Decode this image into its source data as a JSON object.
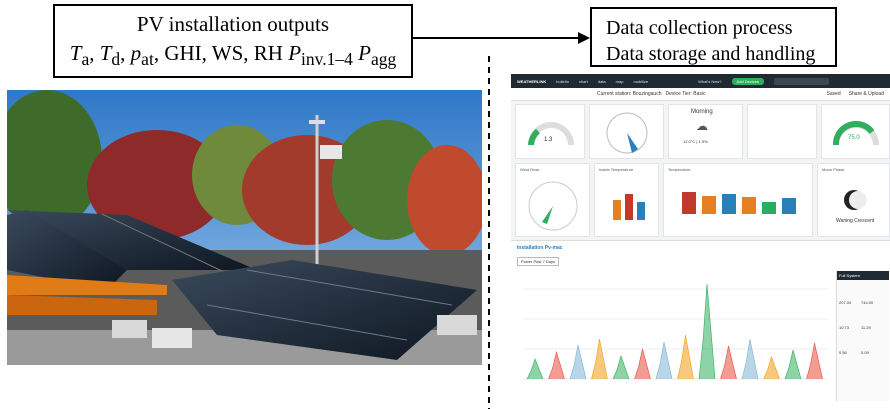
{
  "diagram": {
    "left_box": {
      "line1": "PV installation outputs",
      "line2_parts": [
        {
          "base": "T",
          "sub": "a",
          "sep": ", "
        },
        {
          "base": "T",
          "sub": "d",
          "sep": ", "
        },
        {
          "base": "p",
          "sub": "at",
          "sep": ", "
        },
        {
          "plain": "GHI, WS, RH"
        },
        {
          "base": "P",
          "sub": "inv.1–4",
          "sep": "  "
        },
        {
          "base": "P",
          "sub": "agg",
          "sep": ""
        }
      ]
    },
    "right_box": {
      "line1": "Data collection process",
      "line2": "Data storage and handling"
    }
  },
  "dashboard": {
    "brand": "WEATHERLINK",
    "nav": [
      "bulletin",
      "chart",
      "data",
      "map",
      "mobilize"
    ],
    "whats_new": "What's New?",
    "cta": "Add Devices",
    "station_label": "Current station: Bouzingauch",
    "device_tier": "Device Tier: Basic",
    "actions": [
      "Saved",
      "Share & Upload"
    ],
    "widgets": {
      "gauge_left_value": "1.3",
      "morning_title": "Morning",
      "morning_temp": "12.0°C | 1.9%",
      "gauge_right_value": "75.0",
      "wind_rose": "Wind Rose",
      "inside_temp": "Inside Temperature",
      "temperature": "Temperature",
      "moon_phase": "Moon Phase",
      "moon_state": "Waning Crescent"
    },
    "bar_colors": [
      "#c0392b",
      "#e67e22",
      "#2980b9",
      "#e67e22",
      "#27ae60",
      "#2980b9"
    ],
    "panel_title": "Installation Pv-mac",
    "panel_filter": "Power Past 7 Days",
    "side_title": "Full System",
    "side_values": [
      "207.00",
      "744.00",
      "10.73",
      "11.29",
      "0.56",
      "0.09"
    ]
  }
}
